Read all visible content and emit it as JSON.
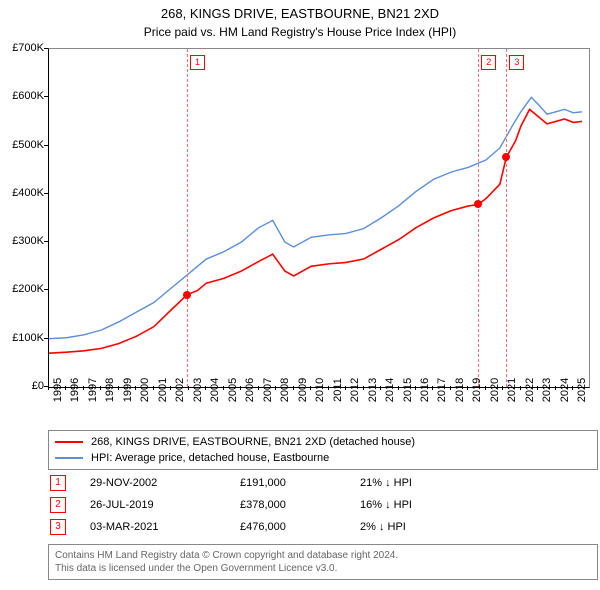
{
  "title_line1": "268, KINGS DRIVE, EASTBOURNE, BN21 2XD",
  "title_line2": "Price paid vs. HM Land Registry's House Price Index (HPI)",
  "chart": {
    "type": "line",
    "background_color": "#ffffff",
    "axis_color": "#000000",
    "ylim": [
      0,
      700000
    ],
    "y_ticks": [
      0,
      100000,
      200000,
      300000,
      400000,
      500000,
      600000,
      700000
    ],
    "y_tick_labels": [
      "£0",
      "£100K",
      "£200K",
      "£300K",
      "£400K",
      "£500K",
      "£600K",
      "£700K"
    ],
    "xlim": [
      1995,
      2025.9
    ],
    "x_ticks": [
      1995,
      1996,
      1997,
      1998,
      1999,
      2000,
      2001,
      2002,
      2003,
      2004,
      2005,
      2006,
      2007,
      2008,
      2009,
      2010,
      2011,
      2012,
      2013,
      2014,
      2015,
      2016,
      2017,
      2018,
      2019,
      2020,
      2021,
      2022,
      2023,
      2024,
      2025
    ],
    "x_tick_labels": [
      "1995",
      "1996",
      "1997",
      "1998",
      "1999",
      "2000",
      "2001",
      "2002",
      "2003",
      "2004",
      "2005",
      "2006",
      "2007",
      "2008",
      "2009",
      "2010",
      "2011",
      "2012",
      "2013",
      "2014",
      "2015",
      "2016",
      "2017",
      "2018",
      "2019",
      "2020",
      "2021",
      "2022",
      "2023",
      "2024",
      "2025"
    ],
    "series": [
      {
        "name": "price_paid",
        "color": "#ff0000",
        "width": 1.6,
        "points": [
          [
            1995,
            70000
          ],
          [
            1996,
            72000
          ],
          [
            1997,
            75000
          ],
          [
            1998,
            80000
          ],
          [
            1999,
            90000
          ],
          [
            2000,
            105000
          ],
          [
            2001,
            125000
          ],
          [
            2002,
            160000
          ],
          [
            2002.9,
            191000
          ],
          [
            2003.5,
            200000
          ],
          [
            2004,
            215000
          ],
          [
            2005,
            225000
          ],
          [
            2006,
            240000
          ],
          [
            2007,
            260000
          ],
          [
            2007.8,
            275000
          ],
          [
            2008.5,
            240000
          ],
          [
            2009,
            230000
          ],
          [
            2010,
            250000
          ],
          [
            2011,
            255000
          ],
          [
            2012,
            258000
          ],
          [
            2013,
            265000
          ],
          [
            2014,
            285000
          ],
          [
            2015,
            305000
          ],
          [
            2016,
            330000
          ],
          [
            2017,
            350000
          ],
          [
            2018,
            365000
          ],
          [
            2019,
            375000
          ],
          [
            2019.56,
            378000
          ],
          [
            2020,
            390000
          ],
          [
            2020.8,
            420000
          ],
          [
            2021.17,
            476000
          ],
          [
            2021.7,
            510000
          ],
          [
            2022,
            540000
          ],
          [
            2022.5,
            575000
          ],
          [
            2023,
            560000
          ],
          [
            2023.5,
            545000
          ],
          [
            2024,
            550000
          ],
          [
            2024.5,
            555000
          ],
          [
            2025,
            548000
          ],
          [
            2025.5,
            550000
          ]
        ]
      },
      {
        "name": "hpi",
        "color": "#5b8fd6",
        "width": 1.4,
        "points": [
          [
            1995,
            100000
          ],
          [
            1996,
            102000
          ],
          [
            1997,
            108000
          ],
          [
            1998,
            118000
          ],
          [
            1999,
            135000
          ],
          [
            2000,
            155000
          ],
          [
            2001,
            175000
          ],
          [
            2002,
            205000
          ],
          [
            2003,
            235000
          ],
          [
            2004,
            265000
          ],
          [
            2005,
            280000
          ],
          [
            2006,
            300000
          ],
          [
            2007,
            330000
          ],
          [
            2007.8,
            345000
          ],
          [
            2008.5,
            300000
          ],
          [
            2009,
            290000
          ],
          [
            2010,
            310000
          ],
          [
            2011,
            315000
          ],
          [
            2012,
            318000
          ],
          [
            2013,
            328000
          ],
          [
            2014,
            350000
          ],
          [
            2015,
            375000
          ],
          [
            2016,
            405000
          ],
          [
            2017,
            430000
          ],
          [
            2018,
            445000
          ],
          [
            2019,
            455000
          ],
          [
            2020,
            470000
          ],
          [
            2020.8,
            495000
          ],
          [
            2021.5,
            540000
          ],
          [
            2022,
            570000
          ],
          [
            2022.6,
            600000
          ],
          [
            2023,
            585000
          ],
          [
            2023.5,
            565000
          ],
          [
            2024,
            570000
          ],
          [
            2024.5,
            575000
          ],
          [
            2025,
            568000
          ],
          [
            2025.5,
            570000
          ]
        ]
      }
    ],
    "sale_markers": [
      {
        "n": "1",
        "x": 2002.9,
        "y": 191000
      },
      {
        "n": "2",
        "x": 2019.56,
        "y": 378000
      },
      {
        "n": "3",
        "x": 2021.17,
        "y": 476000
      }
    ],
    "vline_color": "#ff7070",
    "marker_box_border": "#ff0000",
    "marker_box_text": "#ff0000",
    "dot_color": "#ff0000",
    "label_fontsize": 11,
    "title_fontsize": 13
  },
  "legend": {
    "items": [
      {
        "color": "#ff0000",
        "label": "268, KINGS DRIVE, EASTBOURNE, BN21 2XD (detached house)"
      },
      {
        "color": "#5b8fd6",
        "label": "HPI: Average price, detached house, Eastbourne"
      }
    ]
  },
  "sales": [
    {
      "n": "1",
      "date": "29-NOV-2002",
      "price": "£191,000",
      "diff": "21% ↓ HPI"
    },
    {
      "n": "2",
      "date": "26-JUL-2019",
      "price": "£378,000",
      "diff": "16% ↓ HPI"
    },
    {
      "n": "3",
      "date": "03-MAR-2021",
      "price": "£476,000",
      "diff": "2% ↓ HPI"
    }
  ],
  "footer_line1": "Contains HM Land Registry data © Crown copyright and database right 2024.",
  "footer_line2": "This data is licensed under the Open Government Licence v3.0."
}
